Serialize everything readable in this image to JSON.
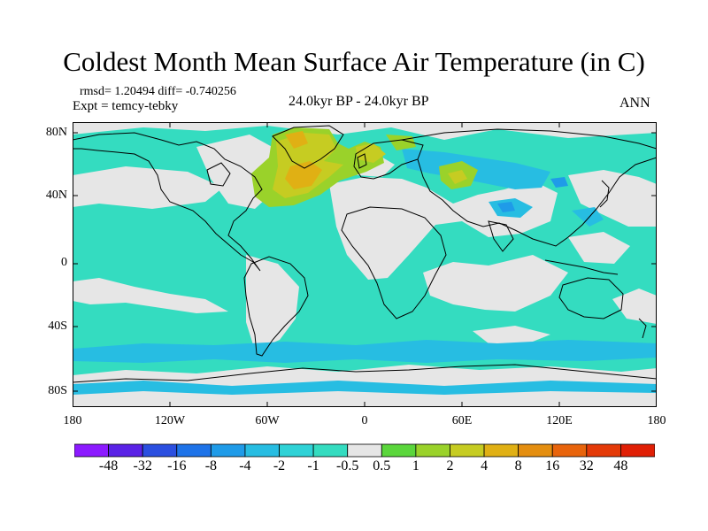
{
  "title": "Coldest Month Mean Surface Air Temperature (in C)",
  "stats": "rmsd= 1.20494  diff= -0.740256",
  "expt": "Expt = temcy-tebky",
  "period": "24.0kyr BP - 24.0kyr BP",
  "season": "ANN",
  "lat_labels": [
    "80N",
    "40N",
    "0",
    "40S",
    "80S"
  ],
  "lon_labels": [
    "180",
    "120W",
    "60W",
    "0",
    "60E",
    "120E",
    "180"
  ],
  "colorbar": {
    "labels": [
      "-48",
      "-32",
      "-16",
      "-8",
      "-4",
      "-2",
      "-1",
      "-0.5",
      "0.5",
      "1",
      "2",
      "4",
      "8",
      "16",
      "32",
      "48"
    ],
    "colors": [
      "#8c1aff",
      "#5a22e6",
      "#2b4fe0",
      "#1e73e8",
      "#1f9be8",
      "#27bde2",
      "#2fd2d6",
      "#34dcc0",
      "#e6e6e6",
      "#5bd63c",
      "#9ad22a",
      "#c6cc22",
      "#e0b014",
      "#e48e10",
      "#e8640c",
      "#e43a08",
      "#e01f05"
    ]
  },
  "map_colors": {
    "ocean_base": "#34dcc0",
    "neutral": "#e6e6e6",
    "light_blue": "#27bde2",
    "blue": "#1f9be8",
    "green": "#9ad22a",
    "yellow": "#c6cc22",
    "orange": "#e0b014",
    "coast": "#000000"
  }
}
